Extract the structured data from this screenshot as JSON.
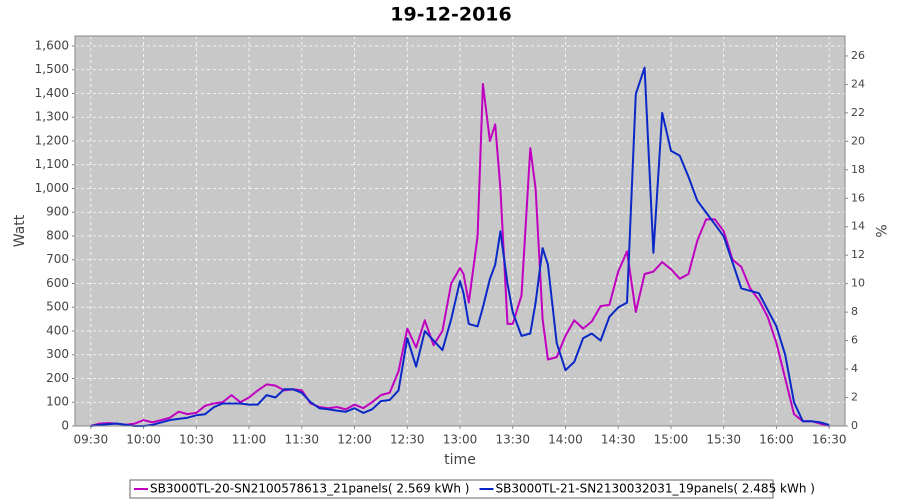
{
  "chart_data": {
    "type": "line",
    "title": "19-12-2016",
    "xlabel": "time",
    "ylabel": "Watt",
    "y2label": "%",
    "grid": true,
    "legend": "bottom",
    "xlim": [
      "09:21",
      "16:39"
    ],
    "xticks": [
      "09:30",
      "10:00",
      "10:30",
      "11:00",
      "11:30",
      "12:00",
      "12:30",
      "13:00",
      "13:30",
      "14:00",
      "14:30",
      "15:00",
      "15:30",
      "16:00",
      "16:30"
    ],
    "ylim": [
      0,
      1642
    ],
    "yticks": [
      0,
      100,
      200,
      300,
      400,
      500,
      600,
      700,
      800,
      900,
      {
        "value": 1000,
        "label": "1,000"
      },
      {
        "value": 1100,
        "label": "1,100"
      },
      {
        "value": 1200,
        "label": "1,200"
      },
      {
        "value": 1300,
        "label": "1,300"
      },
      {
        "value": 1400,
        "label": "1,400"
      },
      {
        "value": 1500,
        "label": "1,500"
      },
      {
        "value": 1600,
        "label": "1,600"
      }
    ],
    "y2lim": [
      0,
      27.4
    ],
    "y2ticks": [
      0,
      2,
      4,
      6,
      8,
      10,
      12,
      14,
      16,
      18,
      20,
      22,
      24,
      26
    ],
    "x": [
      "09:30",
      "09:35",
      "09:40",
      "09:45",
      "09:50",
      "09:55",
      "10:00",
      "10:05",
      "10:10",
      "10:15",
      "10:20",
      "10:25",
      "10:30",
      "10:35",
      "10:40",
      "10:45",
      "10:50",
      "10:55",
      "11:00",
      "11:05",
      "11:10",
      "11:15",
      "11:20",
      "11:25",
      "11:30",
      "11:35",
      "11:40",
      "11:45",
      "11:50",
      "11:55",
      "12:00",
      "12:05",
      "12:10",
      "12:15",
      "12:20",
      "12:25",
      "12:30",
      "12:35",
      "12:40",
      "12:45",
      "12:50",
      "12:55",
      "13:00",
      "13:02",
      "13:05",
      "13:10",
      "13:13",
      "13:17",
      "13:20",
      "13:23",
      "13:27",
      "13:30",
      "13:35",
      "13:40",
      "13:43",
      "13:47",
      "13:50",
      "13:55",
      "14:00",
      "14:05",
      "14:10",
      "14:15",
      "14:20",
      "14:25",
      "14:30",
      "14:35",
      "14:40",
      "14:45",
      "14:50",
      "14:55",
      "15:00",
      "15:05",
      "15:10",
      "15:15",
      "15:20",
      "15:25",
      "15:30",
      "15:35",
      "15:40",
      "15:45",
      "15:50",
      "15:55",
      "16:00",
      "16:05",
      "16:10",
      "16:15",
      "16:20",
      "16:25",
      "16:30"
    ],
    "series": [
      {
        "name": "SB3000TL-20-SN2100578613_21panels( 2.569 kWh )",
        "color": "#c000c0",
        "values": [
          0,
          10,
          12,
          10,
          5,
          10,
          25,
          15,
          25,
          35,
          60,
          50,
          55,
          85,
          95,
          100,
          130,
          100,
          120,
          150,
          175,
          170,
          150,
          155,
          150,
          95,
          80,
          75,
          80,
          70,
          90,
          75,
          100,
          130,
          140,
          230,
          410,
          330,
          445,
          340,
          400,
          600,
          665,
          640,
          520,
          800,
          1440,
          1200,
          1270,
          1000,
          430,
          430,
          550,
          1170,
          1000,
          450,
          280,
          290,
          380,
          445,
          410,
          440,
          505,
          510,
          650,
          735,
          480,
          640,
          650,
          690,
          660,
          620,
          640,
          780,
          870,
          870,
          820,
          700,
          670,
          580,
          530,
          460,
          350,
          200,
          50,
          20,
          20,
          10,
          0
        ]
      },
      {
        "name": "SB3000TL-21-SN2130032031_19panels( 2.485 kWh )",
        "color": "#0a28c8",
        "axis": "y2",
        "values": [
          0,
          0.08,
          0.13,
          0.17,
          0.08,
          0,
          0,
          0.08,
          0.25,
          0.42,
          0.5,
          0.58,
          0.75,
          0.83,
          1.33,
          1.58,
          1.58,
          1.58,
          1.5,
          1.5,
          2.17,
          2,
          2.58,
          2.58,
          2.33,
          1.67,
          1.25,
          1.17,
          1.08,
          1,
          1.25,
          0.92,
          1.17,
          1.75,
          1.83,
          2.5,
          6.17,
          4.17,
          6.67,
          6,
          5.33,
          7.5,
          10.17,
          9.33,
          7.17,
          7,
          8.33,
          10.33,
          11.33,
          13.67,
          10,
          8,
          6.33,
          6.5,
          8.67,
          12.5,
          11.33,
          5.83,
          3.92,
          4.5,
          6.17,
          6.5,
          6,
          7.67,
          8.33,
          8.67,
          23.33,
          25.17,
          12.17,
          22,
          19.33,
          19,
          17.5,
          15.83,
          15,
          14.17,
          13.33,
          11.5,
          9.67,
          9.5,
          9.33,
          8.17,
          7,
          5,
          1.67,
          0.33,
          0.33,
          0.25,
          0.08
        ]
      }
    ]
  }
}
